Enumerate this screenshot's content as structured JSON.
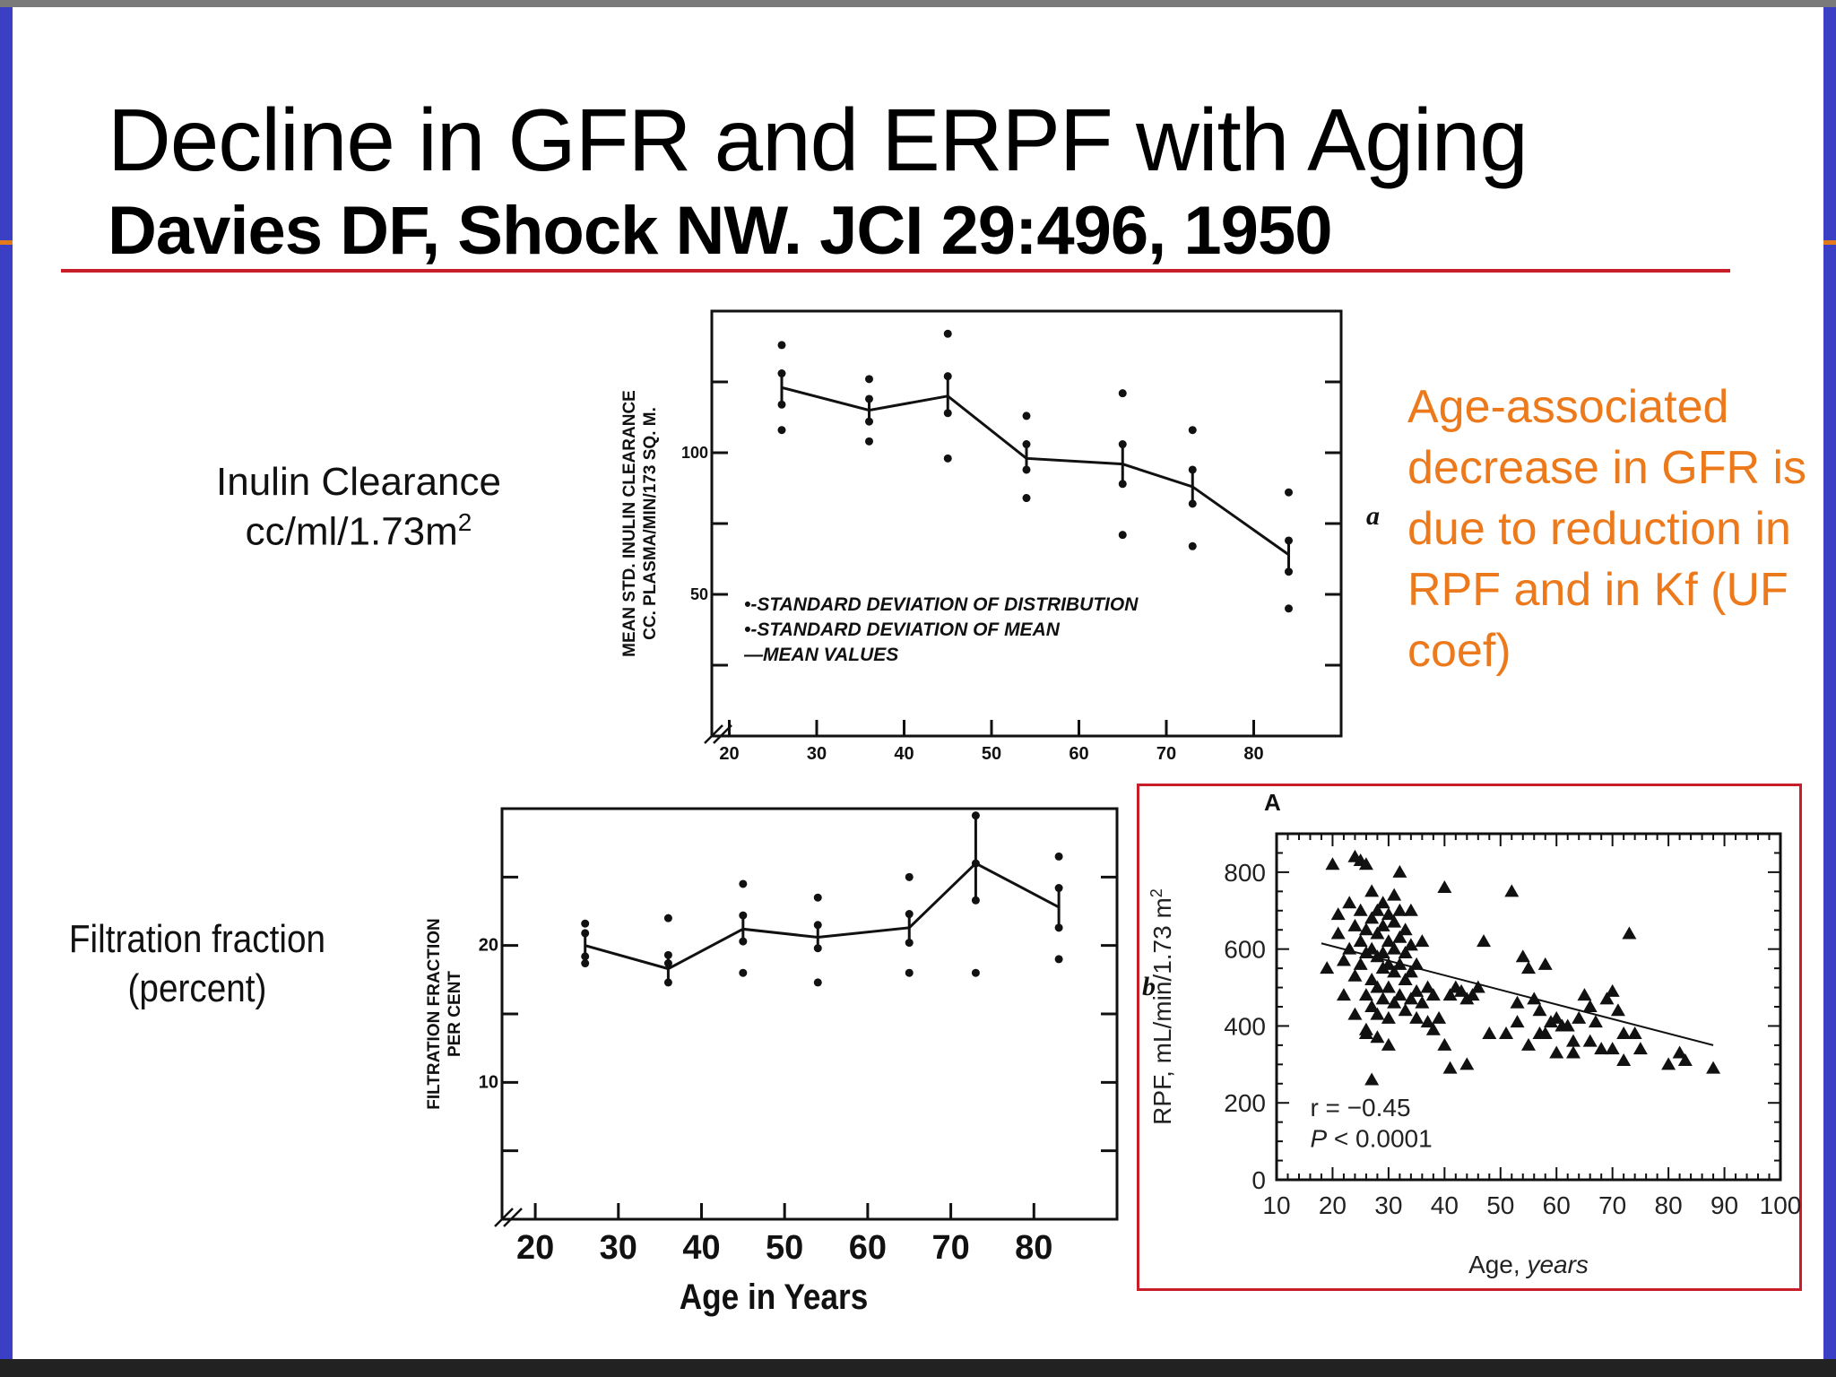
{
  "slide": {
    "title": "Decline in GFR and ERPF with Aging",
    "subtitle": "Davies DF, Shock NW.  JCI 29:496, 1950",
    "rule_color": "#c81e2a"
  },
  "labels": {
    "inulin_line1": "Inulin Clearance",
    "inulin_line2": "cc/ml/1.73m",
    "inulin_sup": "2",
    "ff_line1": "Filtration fraction",
    "ff_line2": "(percent)"
  },
  "note": {
    "text": "Age-associated decrease in GFR is due to reduction in RPF and in Kf (UF coef)",
    "color": "#ec7a1c"
  },
  "chart_data": [
    {
      "id": "inulin",
      "type": "line",
      "panel_letter": "a",
      "ylabel_line1": "MEAN STD. INULIN CLEARANCE",
      "ylabel_line2": "CC. PLASMA/MIN/173 SQ. M.",
      "x_ticks": [
        20,
        30,
        40,
        50,
        60,
        70,
        80
      ],
      "y_ticks": [
        50,
        100
      ],
      "xlim": [
        18,
        90
      ],
      "ylim": [
        0,
        150
      ],
      "x": [
        26,
        36,
        45,
        54,
        65,
        73,
        84
      ],
      "mean": [
        123,
        115,
        120,
        98,
        96,
        88,
        64
      ],
      "sem_low": [
        117,
        111,
        114,
        94,
        89,
        82,
        58
      ],
      "sem_high": [
        128,
        119,
        127,
        103,
        103,
        94,
        69
      ],
      "sd_low": [
        108,
        104,
        98,
        84,
        71,
        67,
        45
      ],
      "sd_high": [
        138,
        126,
        142,
        113,
        121,
        108,
        86
      ],
      "legend": [
        "•-STANDARD  DEVIATION  OF  DISTRIBUTION",
        "•-STANDARD  DEVIATION  OF  MEAN",
        "—MEAN  VALUES"
      ]
    },
    {
      "id": "filtration-fraction",
      "type": "line",
      "panel_letter": "b",
      "ylabel_line1": "FILTRATION   FRACTION",
      "ylabel_line2": "PER   CENT",
      "xlabel": "Age in Years",
      "x_ticks": [
        20,
        30,
        40,
        50,
        60,
        70,
        80
      ],
      "y_ticks": [
        10,
        20
      ],
      "xlim": [
        16,
        90
      ],
      "ylim": [
        0,
        30
      ],
      "x": [
        26,
        36,
        45,
        54,
        65,
        73,
        83
      ],
      "mean": [
        20,
        18.3,
        21.2,
        20.6,
        21.3,
        26,
        22.8
      ],
      "sem_low": [
        19.2,
        17.3,
        20.3,
        19.8,
        20.2,
        23.3,
        21.3
      ],
      "sem_high": [
        20.9,
        19.3,
        22.2,
        21.5,
        22.3,
        29.5,
        24.2
      ],
      "sd_low": [
        18.7,
        18.7,
        18,
        17.3,
        18,
        18,
        19
      ],
      "sd_high": [
        21.6,
        22,
        24.5,
        23.5,
        25,
        26,
        26.5
      ]
    },
    {
      "id": "rpf-scatter",
      "type": "scatter",
      "panel_letter": "A",
      "ylabel": "RPF, mL/min/1.73 m",
      "ylabel_sup": "2",
      "xlabel": "Age, ",
      "xlabel_italic": "years",
      "x_ticks": [
        10,
        20,
        30,
        40,
        50,
        60,
        70,
        80,
        90,
        100
      ],
      "y_ticks": [
        0,
        200,
        400,
        600,
        800
      ],
      "xlim": [
        10,
        100
      ],
      "ylim": [
        0,
        900
      ],
      "annotation_r": "r = −0.45",
      "annotation_p_italic": "P",
      "annotation_p": " < 0.0001",
      "regression": {
        "x": [
          18,
          88
        ],
        "y": [
          615,
          350
        ]
      },
      "points": [
        [
          19,
          550
        ],
        [
          20,
          820
        ],
        [
          21,
          640
        ],
        [
          21,
          690
        ],
        [
          22,
          570
        ],
        [
          22,
          480
        ],
        [
          23,
          720
        ],
        [
          23,
          600
        ],
        [
          24,
          660
        ],
        [
          24,
          530
        ],
        [
          24,
          430
        ],
        [
          25,
          830
        ],
        [
          25,
          700
        ],
        [
          25,
          620
        ],
        [
          25,
          560
        ],
        [
          26,
          820
        ],
        [
          26,
          650
        ],
        [
          26,
          590
        ],
        [
          26,
          480
        ],
        [
          26,
          390
        ],
        [
          27,
          750
        ],
        [
          27,
          680
        ],
        [
          27,
          600
        ],
        [
          27,
          520
        ],
        [
          27,
          450
        ],
        [
          28,
          700
        ],
        [
          28,
          640
        ],
        [
          28,
          580
        ],
        [
          28,
          500
        ],
        [
          28,
          430
        ],
        [
          29,
          720
        ],
        [
          29,
          660
        ],
        [
          29,
          590
        ],
        [
          29,
          550
        ],
        [
          29,
          470
        ],
        [
          30,
          690
        ],
        [
          30,
          620
        ],
        [
          30,
          560
        ],
        [
          30,
          500
        ],
        [
          30,
          420
        ],
        [
          30,
          350
        ],
        [
          31,
          740
        ],
        [
          31,
          670
        ],
        [
          31,
          600
        ],
        [
          31,
          540
        ],
        [
          31,
          460
        ],
        [
          32,
          800
        ],
        [
          32,
          700
        ],
        [
          32,
          630
        ],
        [
          32,
          560
        ],
        [
          32,
          480
        ],
        [
          33,
          650
        ],
        [
          33,
          590
        ],
        [
          33,
          520
        ],
        [
          33,
          440
        ],
        [
          34,
          700
        ],
        [
          34,
          610
        ],
        [
          34,
          540
        ],
        [
          34,
          470
        ],
        [
          35,
          560
        ],
        [
          35,
          490
        ],
        [
          35,
          420
        ],
        [
          36,
          620
        ],
        [
          36,
          460
        ],
        [
          37,
          500
        ],
        [
          37,
          410
        ],
        [
          38,
          480
        ],
        [
          38,
          390
        ],
        [
          39,
          420
        ],
        [
          40,
          760
        ],
        [
          41,
          480
        ],
        [
          42,
          500
        ],
        [
          43,
          490
        ],
        [
          44,
          470
        ],
        [
          45,
          480
        ],
        [
          46,
          500
        ],
        [
          48,
          380
        ],
        [
          52,
          750
        ],
        [
          53,
          460
        ],
        [
          54,
          580
        ],
        [
          55,
          550
        ],
        [
          56,
          470
        ],
        [
          57,
          440
        ],
        [
          58,
          380
        ],
        [
          59,
          410
        ],
        [
          60,
          420
        ],
        [
          61,
          400
        ],
        [
          62,
          400
        ],
        [
          63,
          360
        ],
        [
          64,
          420
        ],
        [
          65,
          480
        ],
        [
          66,
          450
        ],
        [
          67,
          410
        ],
        [
          68,
          340
        ],
        [
          69,
          470
        ],
        [
          70,
          490
        ],
        [
          71,
          440
        ],
        [
          72,
          380
        ],
        [
          73,
          640
        ],
        [
          74,
          380
        ],
        [
          75,
          340
        ],
        [
          80,
          300
        ],
        [
          82,
          330
        ],
        [
          83,
          310
        ],
        [
          88,
          290
        ],
        [
          24,
          840
        ],
        [
          26,
          380
        ],
        [
          28,
          370
        ],
        [
          27,
          260
        ],
        [
          41,
          290
        ],
        [
          44,
          300
        ],
        [
          40,
          350
        ],
        [
          51,
          380
        ],
        [
          53,
          410
        ],
        [
          55,
          350
        ],
        [
          57,
          380
        ],
        [
          60,
          330
        ],
        [
          63,
          330
        ],
        [
          66,
          360
        ],
        [
          70,
          340
        ],
        [
          72,
          310
        ],
        [
          47,
          620
        ],
        [
          58,
          560
        ]
      ]
    }
  ]
}
